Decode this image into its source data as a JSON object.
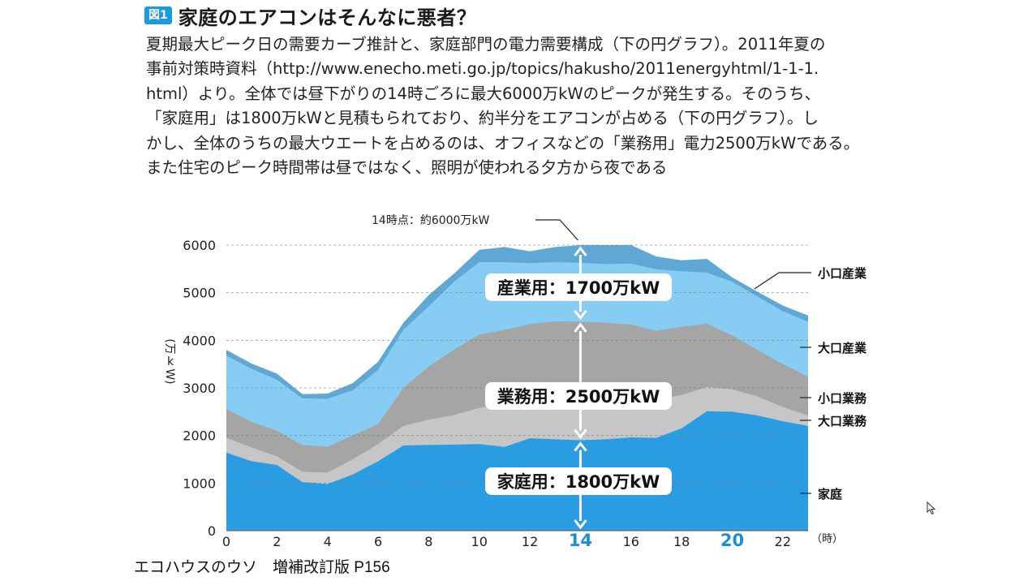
{
  "figure": {
    "badge": "図1",
    "title": "家庭のエアコンはそんなに悪者？",
    "caption_lines": [
      "夏期最大ピーク日の需要カーブ推計と、家庭部門の電力需要構成（下の円グラフ）。2011年夏の",
      "事前対策時資料（http://www.enecho.meti.go.jp/topics/hakusho/2011energyhtml/1-1-1.",
      "html）より。全体では昼下がりの14時ごろに最大6000万kWのピークが発生する。そのうち、",
      "「家庭用」は1800万kWと見積もられており、約半分をエアコンが占める（下の円グラフ）。し",
      "かし、全体のうちの最大ウエートを占めるのは、オフィスなどの「業務用」電力2500万kWである。",
      "また住宅のピーク時間帯は昼ではなく、照明が使われる夕方から夜である"
    ]
  },
  "source_text": "エコハウスのウソ　増補改訂版 P156",
  "colors": {
    "katei": "#2a9de2",
    "oguchi_gyomu": "#c6c6c6",
    "koguchi_gyomu": "#a5a5a5",
    "oguchi_sangyo": "#87cdf3",
    "koguchi_sangyo": "#5fa8d6",
    "highlight": "#1a8fd6",
    "badge": "#1a9ae0"
  },
  "chart_data": {
    "type": "area",
    "stacked": true,
    "x": [
      0,
      1,
      2,
      3,
      4,
      5,
      6,
      7,
      8,
      9,
      10,
      11,
      12,
      13,
      14,
      15,
      16,
      17,
      18,
      19,
      20,
      21,
      22,
      23
    ],
    "xlim": [
      0,
      23
    ],
    "ylim": [
      0,
      6000
    ],
    "x_ticks": [
      "0",
      "2",
      "4",
      "6",
      "8",
      "10",
      "12",
      "14",
      "16",
      "18",
      "20",
      "22"
    ],
    "x_tick_values": [
      0,
      2,
      4,
      6,
      8,
      10,
      12,
      14,
      16,
      18,
      20,
      22
    ],
    "highlight_ticks": [
      14,
      20
    ],
    "x_unit": "（時）",
    "y_ticks": [
      0,
      1000,
      2000,
      3000,
      4000,
      5000,
      6000
    ],
    "ylabel_chars": [
      "(万",
      "k",
      "W)"
    ],
    "peak_annotation": "14時点：約6000万kW",
    "series": [
      {
        "name": "家庭",
        "key": "katei",
        "cumulative": [
          1640,
          1460,
          1380,
          1020,
          980,
          1180,
          1460,
          1790,
          1800,
          1810,
          1820,
          1760,
          1940,
          1920,
          1900,
          1920,
          1960,
          1950,
          2150,
          2510,
          2500,
          2420,
          2300,
          2200
        ]
      },
      {
        "name": "大口業務",
        "key": "oguchi_gyomu",
        "cumulative": [
          1950,
          1750,
          1560,
          1240,
          1220,
          1500,
          1820,
          2200,
          2330,
          2430,
          2580,
          2660,
          2730,
          2770,
          2810,
          2780,
          2800,
          2750,
          2850,
          3020,
          2970,
          2820,
          2600,
          2420
        ]
      },
      {
        "name": "小口業務",
        "key": "koguchi_gyomu",
        "cumulative": [
          2560,
          2280,
          2100,
          1800,
          1760,
          2000,
          2240,
          3000,
          3450,
          3800,
          4120,
          4220,
          4340,
          4400,
          4390,
          4370,
          4330,
          4200,
          4280,
          4350,
          4100,
          3800,
          3500,
          3230
        ]
      },
      {
        "name": "大口産業",
        "key": "oguchi_sangyo",
        "cumulative": [
          3680,
          3400,
          3170,
          2780,
          2770,
          2950,
          3380,
          4220,
          4710,
          5230,
          5640,
          5640,
          5620,
          5640,
          5630,
          5600,
          5610,
          5490,
          5450,
          5420,
          5230,
          4920,
          4610,
          4390
        ]
      },
      {
        "name": "小口産業",
        "key": "koguchi_sangyo",
        "cumulative": [
          3800,
          3510,
          3300,
          2870,
          2880,
          3100,
          3550,
          4370,
          4950,
          5400,
          5900,
          5960,
          5870,
          5960,
          6000,
          6000,
          6000,
          5760,
          5680,
          5710,
          5320,
          5020,
          4730,
          4520
        ]
      }
    ],
    "legend_labels": [
      "小口産業",
      "大口産業",
      "小口業務",
      "大口業務",
      "家庭"
    ],
    "segment_labels": [
      {
        "text": "産業用：1700万kW",
        "from": 4400,
        "to": 6000
      },
      {
        "text": "業務用：2500万kW",
        "from": 1900,
        "to": 4400
      },
      {
        "text": "家庭用：1800万kW",
        "from": 0,
        "to": 1900
      }
    ]
  }
}
